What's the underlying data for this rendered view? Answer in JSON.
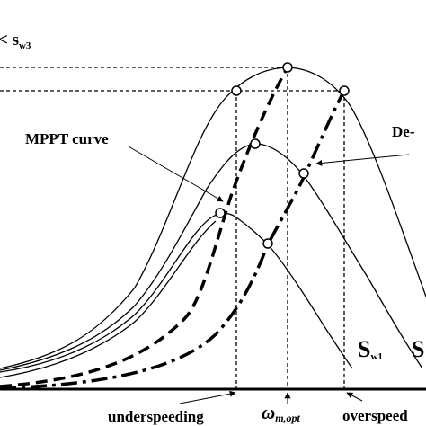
{
  "labels": {
    "top_left": "< s",
    "top_left_sub": "w3",
    "mppt": "MPPT curve",
    "derating": "De-",
    "sw1": "S",
    "sw1_sub": "w1",
    "right_edge": "S",
    "under": "underspeeding",
    "omega": "ω",
    "omega_sub": "m,opt",
    "over": "overspeed"
  }
}
